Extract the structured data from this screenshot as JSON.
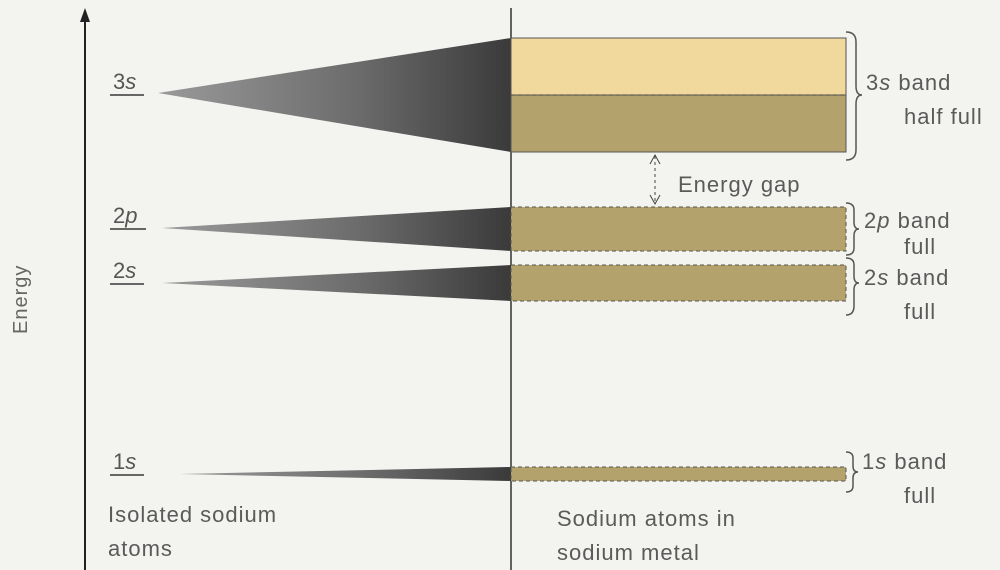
{
  "axis": {
    "label": "Energy"
  },
  "atom_levels": [
    {
      "id": "1s",
      "num": "1",
      "letter": "s"
    },
    {
      "id": "2s",
      "num": "2",
      "letter": "s"
    },
    {
      "id": "2p",
      "num": "2",
      "letter": "p"
    },
    {
      "id": "3s",
      "num": "3",
      "letter": "s"
    }
  ],
  "bands": [
    {
      "id": "3s",
      "num": "3",
      "letter": "s",
      "label_line1": "band",
      "label_line2": "half full"
    },
    {
      "id": "2p",
      "num": "2",
      "letter": "p",
      "label_line1": "band",
      "label_line2": "full"
    },
    {
      "id": "2s",
      "num": "2",
      "letter": "s",
      "label_line1": "band",
      "label_line2": "full"
    },
    {
      "id": "1s",
      "num": "1",
      "letter": "s",
      "label_line1": "band",
      "label_line2": "full"
    }
  ],
  "energy_gap_label": "Energy gap",
  "captions": {
    "left_line1": "Isolated sodium",
    "left_line2": "atoms",
    "right_line1": "Sodium atoms in",
    "right_line2": "sodium metal"
  },
  "colors": {
    "band_filled": "#b3a26b",
    "band_empty": "#f1d89d",
    "wedge_dark": "#3a3a3a",
    "background": "#f3f3f0"
  }
}
